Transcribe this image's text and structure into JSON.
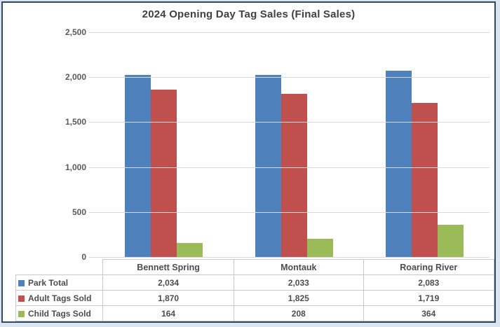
{
  "page": {
    "background_color": "#dbe5f1",
    "frame_border_color": "#2c4a63",
    "chart_background": "#ffffff"
  },
  "chart_data": {
    "type": "bar",
    "title": "2024 Opening Day Tag Sales (Final Sales)",
    "categories": [
      "Bennett Spring",
      "Montauk",
      "Roaring River"
    ],
    "series": [
      {
        "name": "Park Total",
        "color": "#4f81bd",
        "values": [
          2034,
          2033,
          2083
        ],
        "formatted": [
          "2,034",
          "2,033",
          "2,083"
        ]
      },
      {
        "name": "Adult Tags Sold",
        "color": "#c0504d",
        "values": [
          1870,
          1825,
          1719
        ],
        "formatted": [
          "1,870",
          "1,825",
          "1,719"
        ]
      },
      {
        "name": "Child Tags Sold",
        "color": "#9bbb59",
        "values": [
          164,
          208,
          364
        ],
        "formatted": [
          "164",
          "208",
          "364"
        ]
      }
    ],
    "ylim": [
      0,
      2500
    ],
    "yticks": [
      {
        "value": 0,
        "label": "0"
      },
      {
        "value": 500,
        "label": "500"
      },
      {
        "value": 1000,
        "label": "1,000"
      },
      {
        "value": 1500,
        "label": "1,500"
      },
      {
        "value": 2000,
        "label": "2,000"
      },
      {
        "value": 2500,
        "label": "2,500"
      }
    ],
    "grid": true,
    "legend_position": "data-table-left",
    "colors": {
      "gridline": "#d9d9d9",
      "table_border": "#c8c8c8",
      "axis_text": "#595959",
      "table_text": "#4d4d4d",
      "title_text": "#404040"
    }
  }
}
